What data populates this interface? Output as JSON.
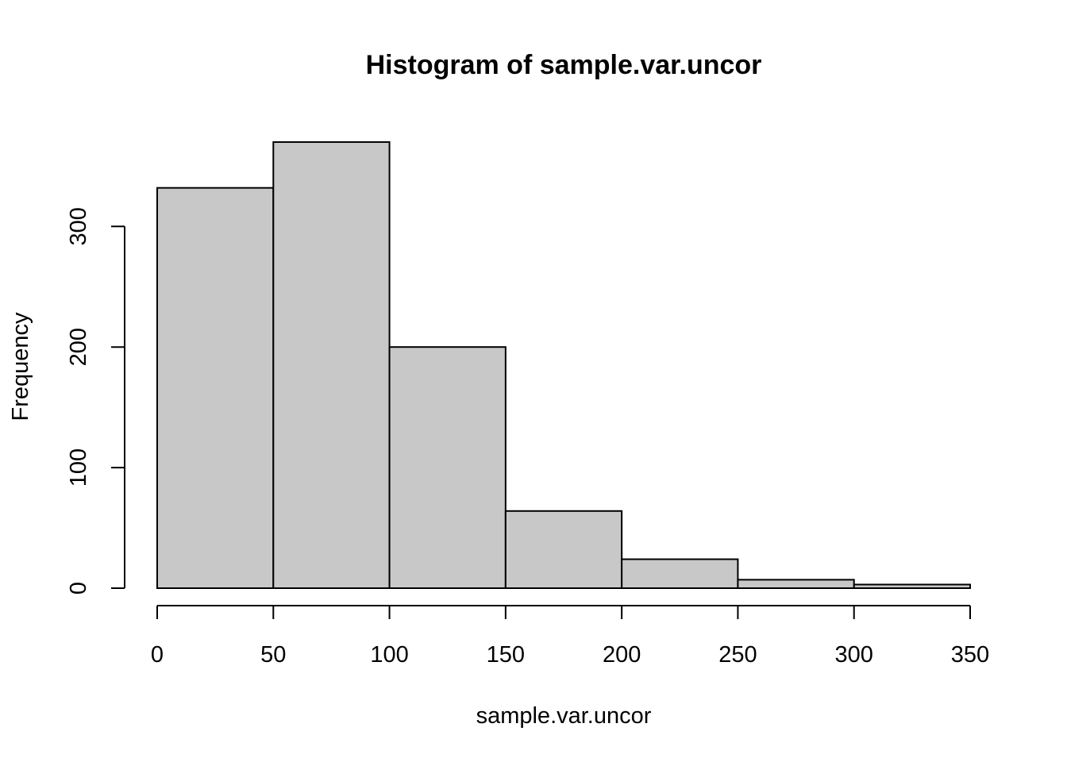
{
  "chart_data": {
    "type": "bar",
    "title": "Histogram of sample.var.uncor",
    "xlabel": "sample.var.uncor",
    "ylabel": "Frequency",
    "bins": [
      {
        "start": 0,
        "end": 50,
        "count": 332
      },
      {
        "start": 50,
        "end": 100,
        "count": 370
      },
      {
        "start": 100,
        "end": 150,
        "count": 200
      },
      {
        "start": 150,
        "end": 200,
        "count": 64
      },
      {
        "start": 200,
        "end": 250,
        "count": 24
      },
      {
        "start": 250,
        "end": 300,
        "count": 7
      },
      {
        "start": 300,
        "end": 350,
        "count": 3
      }
    ],
    "xlim": [
      0,
      350
    ],
    "ylim": [
      0,
      370
    ],
    "x_ticks": [
      0,
      50,
      100,
      150,
      200,
      250,
      300,
      350
    ],
    "y_ticks": [
      0,
      100,
      200,
      300
    ],
    "grid": false,
    "bar_color": "#c8c8c8",
    "edge_color": "#000000"
  }
}
